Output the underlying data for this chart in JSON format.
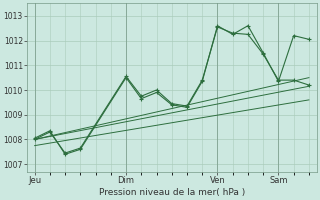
{
  "background_color": "#cce8e0",
  "grid_color": "#aaccbb",
  "line_color": "#2d6e3e",
  "marker_color": "#2d6e3e",
  "xlabel": "Pression niveau de la mer( hPa )",
  "yticks": [
    1007,
    1008,
    1009,
    1010,
    1011,
    1012,
    1013
  ],
  "ylim": [
    1006.7,
    1013.5
  ],
  "day_labels": [
    "Jeu",
    "Dim",
    "Ven",
    "Sam"
  ],
  "day_positions": [
    0,
    24,
    48,
    64
  ],
  "xlim": [
    -2,
    74
  ],
  "vline_positions": [
    0,
    24,
    48,
    64
  ],
  "series1_x": [
    0,
    4,
    8,
    12,
    24,
    28,
    32,
    36,
    40,
    44,
    48,
    52,
    56,
    60,
    64,
    68,
    72
  ],
  "series1_y": [
    1008.0,
    1008.3,
    1007.45,
    1007.65,
    1010.55,
    1009.75,
    1010.0,
    1009.45,
    1009.35,
    1010.4,
    1012.55,
    1012.3,
    1012.25,
    1011.45,
    1010.4,
    1010.4,
    1010.2
  ],
  "series2_x": [
    0,
    4,
    8,
    12,
    24,
    28,
    32,
    36,
    40,
    44,
    48,
    52,
    56,
    60,
    64,
    68,
    72
  ],
  "series2_y": [
    1008.05,
    1008.35,
    1007.4,
    1007.6,
    1010.5,
    1009.65,
    1009.9,
    1009.4,
    1009.3,
    1010.35,
    1012.6,
    1012.25,
    1012.6,
    1011.5,
    1010.35,
    1012.2,
    1012.05
  ],
  "trend1_x": [
    0,
    72
  ],
  "trend1_y": [
    1008.0,
    1010.5
  ],
  "trend2_x": [
    0,
    72
  ],
  "trend2_y": [
    1008.0,
    1010.15
  ],
  "trend3_x": [
    0,
    72
  ],
  "trend3_y": [
    1007.75,
    1009.6
  ]
}
